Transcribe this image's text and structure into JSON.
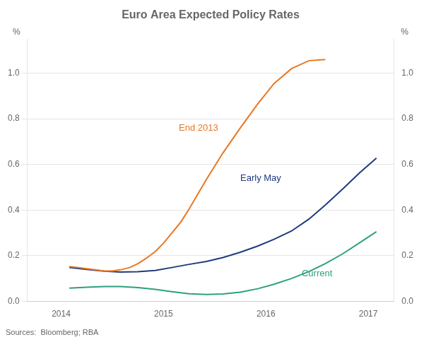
{
  "chart_data": {
    "type": "line",
    "title": "Euro Area Expected Policy Rates",
    "ylabel": "%",
    "y2label": "%",
    "source": "Sources:  Bloomberg; RBA",
    "xlim": [
      2013.67,
      2017.25
    ],
    "xticks": [
      2014,
      2015,
      2016,
      2017
    ],
    "ylim": [
      0.0,
      1.15
    ],
    "yticks": [
      {
        "value": 0.0,
        "label": "0.0"
      },
      0.2,
      0.4,
      0.6,
      0.8,
      {
        "value": 1.0,
        "label": "1.0"
      }
    ],
    "y2lim": [
      0.0,
      1.15
    ],
    "y2ticks": [
      {
        "value": 0.0,
        "label": "0.0"
      },
      0.2,
      0.4,
      0.6,
      0.8,
      {
        "value": 1.0,
        "label": "1.0"
      }
    ],
    "grid": true,
    "series": [
      {
        "color": "#E87722",
        "x": [
          2014.08,
          2014.17,
          2014.25,
          2014.33,
          2014.42,
          2014.5,
          2014.58,
          2014.67,
          2014.75,
          2014.83,
          2014.92,
          2015.0,
          2015.08,
          2015.17,
          2015.25,
          2015.42,
          2015.58,
          2015.75,
          2015.92,
          2016.08,
          2016.25,
          2016.42,
          2016.58
        ],
        "values": [
          0.152,
          0.148,
          0.143,
          0.138,
          0.133,
          0.133,
          0.138,
          0.148,
          0.165,
          0.188,
          0.218,
          0.255,
          0.298,
          0.348,
          0.405,
          0.535,
          0.65,
          0.76,
          0.865,
          0.955,
          1.02,
          1.055,
          1.06
        ]
      },
      {
        "color": "#1F3A7D",
        "x": [
          2014.08,
          2014.25,
          2014.42,
          2014.58,
          2014.75,
          2014.92,
          2015.08,
          2015.25,
          2015.42,
          2015.58,
          2015.75,
          2015.92,
          2016.08,
          2016.25,
          2016.42,
          2016.58,
          2016.75,
          2016.92,
          2017.08
        ],
        "values": [
          0.148,
          0.14,
          0.132,
          0.128,
          0.13,
          0.135,
          0.148,
          0.162,
          0.175,
          0.192,
          0.215,
          0.242,
          0.272,
          0.308,
          0.36,
          0.422,
          0.492,
          0.565,
          0.628
        ]
      },
      {
        "color": "#2CA080",
        "x": [
          2014.08,
          2014.25,
          2014.42,
          2014.58,
          2014.75,
          2014.92,
          2015.08,
          2015.25,
          2015.42,
          2015.58,
          2015.75,
          2015.92,
          2016.08,
          2016.25,
          2016.42,
          2016.58,
          2016.75,
          2016.92,
          2017.08
        ],
        "values": [
          0.058,
          0.062,
          0.065,
          0.065,
          0.06,
          0.052,
          0.042,
          0.033,
          0.03,
          0.032,
          0.04,
          0.055,
          0.075,
          0.1,
          0.13,
          0.165,
          0.208,
          0.258,
          0.305
        ]
      }
    ],
    "annotations": [
      {
        "text": "End 2013",
        "x": 2015.15,
        "y": 0.74,
        "color": "#E87722"
      },
      {
        "text": "Early May",
        "x": 2015.75,
        "y": 0.52,
        "color": "#1F3A7D"
      },
      {
        "text": "Current",
        "x": 2016.35,
        "y": 0.1,
        "color": "#2CA080"
      }
    ]
  }
}
